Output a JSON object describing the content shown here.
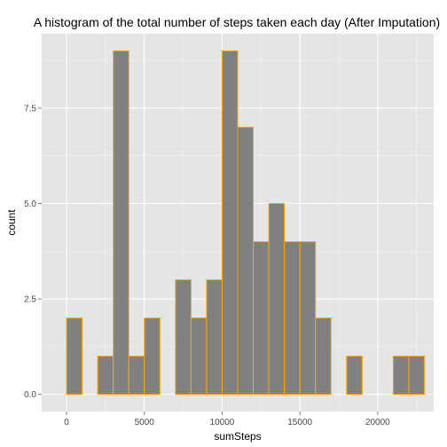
{
  "chart_data": {
    "type": "bar",
    "title": "A histogram of the total number of steps taken each day (After Imputation)",
    "xlabel": "sumSteps",
    "ylabel": "count",
    "xlim": [
      -1600,
      23600
    ],
    "ylim": [
      -0.45,
      9.45
    ],
    "x_ticks": [
      0,
      5000,
      10000,
      15000,
      20000
    ],
    "x_tick_labels": [
      "0",
      "5000",
      "10000",
      "15000",
      "20000"
    ],
    "y_ticks": [
      0.0,
      2.5,
      5.0,
      7.5
    ],
    "y_tick_labels": [
      "0.0",
      "2.5",
      "5.0",
      "7.5"
    ],
    "bin_width": 1000,
    "bins": [
      {
        "start": -1000,
        "end": 0,
        "count": 0
      },
      {
        "start": 0,
        "end": 1000,
        "count": 2
      },
      {
        "start": 1000,
        "end": 2000,
        "count": 0
      },
      {
        "start": 2000,
        "end": 3000,
        "count": 1
      },
      {
        "start": 3000,
        "end": 4000,
        "count": 9
      },
      {
        "start": 4000,
        "end": 5000,
        "count": 1
      },
      {
        "start": 5000,
        "end": 6000,
        "count": 2
      },
      {
        "start": 6000,
        "end": 7000,
        "count": 0
      },
      {
        "start": 7000,
        "end": 8000,
        "count": 3
      },
      {
        "start": 8000,
        "end": 9000,
        "count": 2
      },
      {
        "start": 9000,
        "end": 10000,
        "count": 3
      },
      {
        "start": 10000,
        "end": 11000,
        "count": 9
      },
      {
        "start": 11000,
        "end": 12000,
        "count": 7
      },
      {
        "start": 12000,
        "end": 13000,
        "count": 4
      },
      {
        "start": 13000,
        "end": 14000,
        "count": 5
      },
      {
        "start": 14000,
        "end": 15000,
        "count": 4
      },
      {
        "start": 15000,
        "end": 16000,
        "count": 4
      },
      {
        "start": 16000,
        "end": 17000,
        "count": 2
      },
      {
        "start": 17000,
        "end": 18000,
        "count": 0
      },
      {
        "start": 18000,
        "end": 19000,
        "count": 1
      },
      {
        "start": 19000,
        "end": 20000,
        "count": 0
      },
      {
        "start": 20000,
        "end": 21000,
        "count": 0
      },
      {
        "start": 21000,
        "end": 22000,
        "count": 1
      },
      {
        "start": 22000,
        "end": 23000,
        "count": 1
      }
    ],
    "grid": true,
    "legend": "none",
    "colors": {
      "bar_fill": "#808080",
      "bar_outline": "#FFA500",
      "panel_background": "#E5E5E5",
      "grid_major": "#FFFFFF",
      "grid_minor": "#F2F2F2"
    }
  }
}
